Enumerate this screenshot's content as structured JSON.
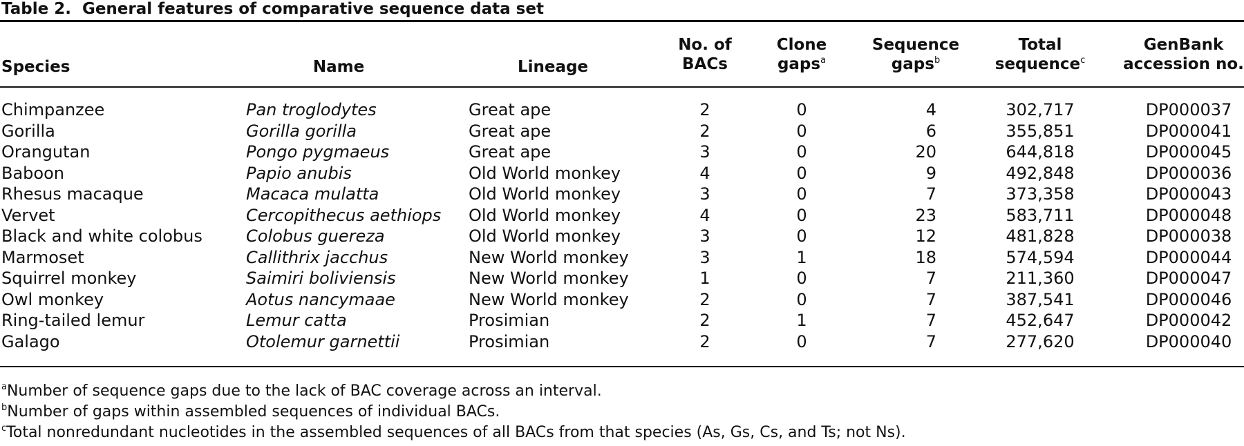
{
  "title": {
    "label": "Table 2.",
    "text": "General features of comparative sequence data set"
  },
  "columns": {
    "species": "Species",
    "name": "Name",
    "lineage": "Lineage",
    "bacs_line1": "No. of",
    "bacs_line2": "BACs",
    "clone_line1": "Clone",
    "clone_line2": "gaps",
    "clone_sup": "a",
    "seq_line1": "Sequence",
    "seq_line2": "gaps",
    "seq_sup": "b",
    "total_line1": "Total",
    "total_line2": "sequence",
    "total_sup": "c",
    "acc_line1": "GenBank",
    "acc_line2": "accession no."
  },
  "rows": [
    {
      "species": "Chimpanzee",
      "name": "Pan troglodytes",
      "lineage": "Great ape",
      "bacs": "2",
      "clone_gaps": "0",
      "seq_gaps": "4",
      "total": "302,717",
      "accession": "DP000037"
    },
    {
      "species": "Gorilla",
      "name": "Gorilla gorilla",
      "lineage": "Great ape",
      "bacs": "2",
      "clone_gaps": "0",
      "seq_gaps": "6",
      "total": "355,851",
      "accession": "DP000041"
    },
    {
      "species": "Orangutan",
      "name": "Pongo pygmaeus",
      "lineage": "Great ape",
      "bacs": "3",
      "clone_gaps": "0",
      "seq_gaps": "20",
      "total": "644,818",
      "accession": "DP000045"
    },
    {
      "species": "Baboon",
      "name": "Papio anubis",
      "lineage": "Old World monkey",
      "bacs": "4",
      "clone_gaps": "0",
      "seq_gaps": "9",
      "total": "492,848",
      "accession": "DP000036"
    },
    {
      "species": "Rhesus macaque",
      "name": "Macaca mulatta",
      "lineage": "Old World monkey",
      "bacs": "3",
      "clone_gaps": "0",
      "seq_gaps": "7",
      "total": "373,358",
      "accession": "DP000043"
    },
    {
      "species": "Vervet",
      "name": "Cercopithecus aethiops",
      "lineage": "Old World monkey",
      "bacs": "4",
      "clone_gaps": "0",
      "seq_gaps": "23",
      "total": "583,711",
      "accession": "DP000048"
    },
    {
      "species": "Black and white colobus",
      "name": "Colobus guereza",
      "lineage": "Old World monkey",
      "bacs": "3",
      "clone_gaps": "0",
      "seq_gaps": "12",
      "total": "481,828",
      "accession": "DP000038"
    },
    {
      "species": "Marmoset",
      "name": "Callithrix jacchus",
      "lineage": "New World monkey",
      "bacs": "3",
      "clone_gaps": "1",
      "seq_gaps": "18",
      "total": "574,594",
      "accession": "DP000044"
    },
    {
      "species": "Squirrel monkey",
      "name": "Saimiri boliviensis",
      "lineage": "New World monkey",
      "bacs": "1",
      "clone_gaps": "0",
      "seq_gaps": "7",
      "total": "211,360",
      "accession": "DP000047"
    },
    {
      "species": "Owl monkey",
      "name": "Aotus nancymaae",
      "lineage": "New World monkey",
      "bacs": "2",
      "clone_gaps": "0",
      "seq_gaps": "7",
      "total": "387,541",
      "accession": "DP000046"
    },
    {
      "species": "Ring-tailed lemur",
      "name": "Lemur catta",
      "lineage": "Prosimian",
      "bacs": "2",
      "clone_gaps": "1",
      "seq_gaps": "7",
      "total": "452,647",
      "accession": "DP000042"
    },
    {
      "species": "Galago",
      "name": "Otolemur garnettii",
      "lineage": "Prosimian",
      "bacs": "2",
      "clone_gaps": "0",
      "seq_gaps": "7",
      "total": "277,620",
      "accession": "DP000040"
    }
  ],
  "footnotes": [
    {
      "mark": "a",
      "text": "Number of sequence gaps due to the lack of BAC coverage across an interval."
    },
    {
      "mark": "b",
      "text": "Number of gaps within assembled sequences of individual BACs."
    },
    {
      "mark": "c",
      "text": "Total nonredundant nucleotides in the assembled sequences of all BACs from that species (As, Gs, Cs, and Ts; not Ns)."
    }
  ]
}
